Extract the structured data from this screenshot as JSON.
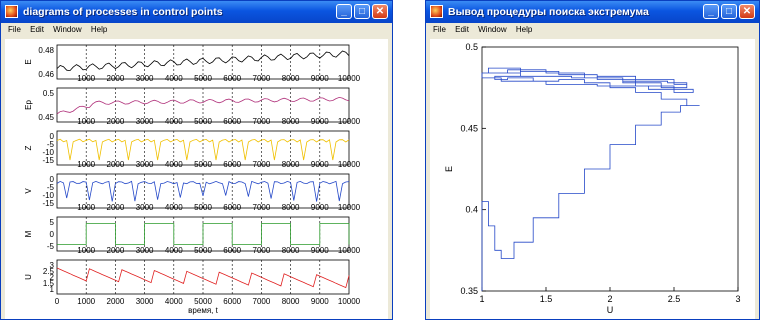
{
  "window1": {
    "title": "diagrams of processes in control points",
    "menu": [
      "File",
      "Edit",
      "Window",
      "Help"
    ],
    "buttons": {
      "minimize": "_",
      "maximize": "□",
      "close": "✕"
    },
    "panels": [
      {
        "ylabel": "E",
        "yticks": [
          "0.48",
          "0.46"
        ],
        "color": "#000000"
      },
      {
        "ylabel": "Ep",
        "yticks": [
          "0.5",
          "0.45"
        ],
        "color": "#b0307a"
      },
      {
        "ylabel": "Z",
        "yticks": [
          "0",
          "-5",
          "-10",
          "-15"
        ],
        "color": "#f0c000"
      },
      {
        "ylabel": "V",
        "yticks": [
          "0",
          "-5",
          "-10",
          "-15"
        ],
        "color": "#2448c8"
      },
      {
        "ylabel": "M",
        "yticks": [
          "5",
          "0",
          "-5"
        ],
        "color": "#2a9a2a"
      },
      {
        "ylabel": "U",
        "yticks": [
          "3",
          "2.5",
          "2",
          "1.5",
          "1"
        ],
        "color": "#e02020"
      }
    ],
    "xticks": [
      "0",
      "1000",
      "2000",
      "3000",
      "4000",
      "5000",
      "6000",
      "7000",
      "8000",
      "9000",
      "10000"
    ],
    "xlabel": "время, t"
  },
  "window2": {
    "title": "Вывод процедуры  поиска экстремума",
    "menu": [
      "File",
      "Edit",
      "Window",
      "Help"
    ],
    "buttons": {
      "minimize": "_",
      "maximize": "□",
      "close": "✕"
    },
    "chart_data": {
      "type": "line",
      "xlabel": "U",
      "ylabel": "E",
      "xlim": [
        1,
        3
      ],
      "ylim": [
        0.35,
        0.5
      ],
      "xticks": [
        "1",
        "1.5",
        "2",
        "2.5",
        "3"
      ],
      "yticks": [
        "0.5",
        "0.45",
        "0.4",
        "0.35"
      ],
      "color": "#2448c8",
      "series": [
        {
          "values": [
            [
              1.0,
              0.35
            ],
            [
              1.0,
              0.405
            ],
            [
              1.02,
              0.405
            ],
            [
              1.05,
              0.39
            ],
            [
              1.1,
              0.375
            ],
            [
              1.15,
              0.37
            ],
            [
              1.25,
              0.38
            ],
            [
              1.4,
              0.395
            ],
            [
              1.6,
              0.41
            ],
            [
              1.8,
              0.425
            ],
            [
              2.0,
              0.44
            ],
            [
              2.2,
              0.452
            ],
            [
              2.4,
              0.46
            ],
            [
              2.55,
              0.464
            ],
            [
              2.7,
              0.464
            ],
            [
              2.6,
              0.468
            ],
            [
              2.4,
              0.472
            ],
            [
              2.2,
              0.475
            ],
            [
              2.0,
              0.478
            ],
            [
              1.8,
              0.48
            ],
            [
              1.6,
              0.479
            ],
            [
              1.4,
              0.481
            ],
            [
              1.2,
              0.48
            ],
            [
              1.1,
              0.482
            ],
            [
              1.3,
              0.485
            ],
            [
              1.6,
              0.483
            ],
            [
              1.9,
              0.482
            ],
            [
              2.2,
              0.48
            ],
            [
              2.5,
              0.477
            ],
            [
              2.6,
              0.475
            ],
            [
              2.4,
              0.478
            ],
            [
              2.1,
              0.481
            ],
            [
              1.8,
              0.484
            ],
            [
              1.5,
              0.486
            ],
            [
              1.2,
              0.484
            ],
            [
              1.0,
              0.481
            ],
            [
              1.15,
              0.479
            ],
            [
              1.5,
              0.477
            ],
            [
              1.9,
              0.476
            ],
            [
              2.3,
              0.474
            ],
            [
              2.65,
              0.472
            ],
            [
              2.5,
              0.476
            ],
            [
              2.2,
              0.48
            ],
            [
              1.9,
              0.483
            ],
            [
              1.6,
              0.485
            ],
            [
              1.3,
              0.487
            ],
            [
              1.05,
              0.484
            ],
            [
              1.3,
              0.482
            ],
            [
              1.7,
              0.481
            ],
            [
              2.1,
              0.479
            ],
            [
              2.45,
              0.478
            ],
            [
              2.6,
              0.477
            ]
          ]
        }
      ]
    }
  }
}
